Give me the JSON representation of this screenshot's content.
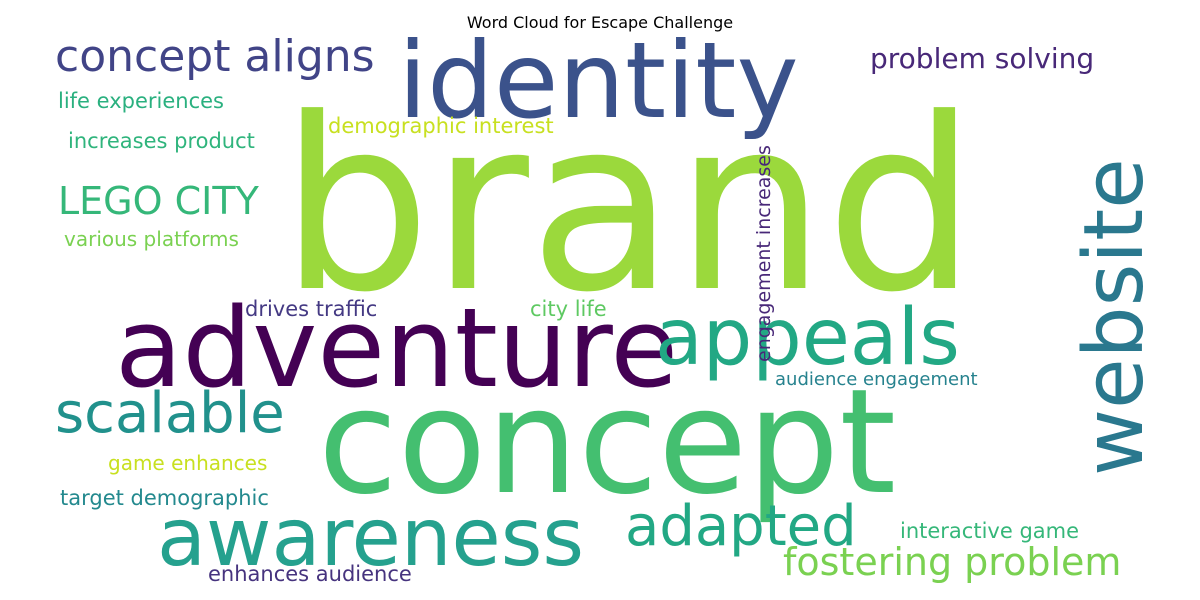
{
  "title": "Word Cloud for Escape Challenge",
  "words": [
    {
      "text": "brand",
      "color": "#9bd93c"
    },
    {
      "text": "concept",
      "color": "#44bf70"
    },
    {
      "text": "identity",
      "color": "#3b528b"
    },
    {
      "text": "adventure",
      "color": "#440154"
    },
    {
      "text": "website",
      "color": "#2a788e"
    },
    {
      "text": "awareness",
      "color": "#25a18e"
    },
    {
      "text": "appeals",
      "color": "#22a884"
    },
    {
      "text": "scalable",
      "color": "#21918c"
    },
    {
      "text": "concept aligns",
      "color": "#414487"
    },
    {
      "text": "adapted",
      "color": "#22a884"
    },
    {
      "text": "fostering problem",
      "color": "#7ad151"
    },
    {
      "text": "LEGO CITY",
      "color": "#35b779"
    },
    {
      "text": "problem solving",
      "color": "#482878"
    },
    {
      "text": "life experiences",
      "color": "#2ab07f"
    },
    {
      "text": "demographic interest",
      "color": "#c8e020"
    },
    {
      "text": "increases product",
      "color": "#2fb47c"
    },
    {
      "text": "various platforms",
      "color": "#7ad151"
    },
    {
      "text": "drives traffic",
      "color": "#443983"
    },
    {
      "text": "city life",
      "color": "#5ec962"
    },
    {
      "text": "audience engagement",
      "color": "#26828e"
    },
    {
      "text": "game enhances",
      "color": "#c8e020"
    },
    {
      "text": "target demographic",
      "color": "#23898e"
    },
    {
      "text": "interactive game",
      "color": "#35b779"
    },
    {
      "text": "enhances audience",
      "color": "#46337e"
    },
    {
      "text": "engagement increases",
      "color": "#482878"
    }
  ]
}
